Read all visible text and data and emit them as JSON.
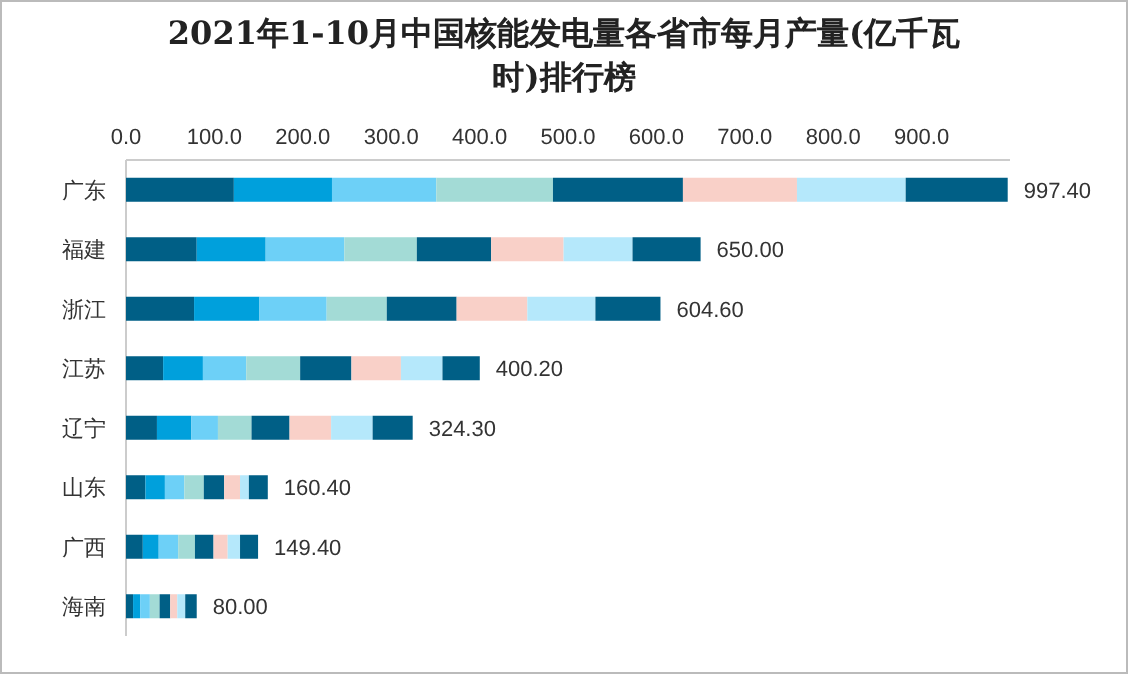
{
  "chart_data": {
    "type": "bar",
    "title": "2021年1-10月中国核能发电量各省市每月产量(亿千瓦时)排行榜",
    "orientation": "horizontal",
    "stacked": true,
    "categories": [
      "广东",
      "福建",
      "浙江",
      "江苏",
      "辽宁",
      "山东",
      "广西",
      "海南"
    ],
    "xlim": [
      0,
      1000
    ],
    "xticks": [
      {
        "value": 0,
        "label": "0.0"
      },
      {
        "value": 100,
        "label": "100.0"
      },
      {
        "value": 200,
        "label": "200.0"
      },
      {
        "value": 300,
        "label": "300.0"
      },
      {
        "value": 400,
        "label": "400.0"
      },
      {
        "value": 500,
        "label": "500.0"
      },
      {
        "value": 600,
        "label": "600.0"
      },
      {
        "value": 700,
        "label": "700.0"
      },
      {
        "value": 800,
        "label": "800.0"
      },
      {
        "value": 900,
        "label": "900.0"
      }
    ],
    "series": [
      {
        "color": "#005f86",
        "values": [
          122,
          80,
          77,
          42,
          35,
          22,
          19,
          8
        ]
      },
      {
        "color": "#00a0dc",
        "values": [
          111,
          78,
          74,
          45,
          39,
          22,
          18,
          8
        ]
      },
      {
        "color": "#6dd0f7",
        "values": [
          118,
          89,
          76,
          49,
          30,
          22,
          22,
          11
        ]
      },
      {
        "color": "#a3dbd6",
        "values": [
          132,
          82,
          68,
          61,
          38,
          22,
          19,
          11
        ]
      },
      {
        "color": "#005f86",
        "values": [
          147,
          84,
          79,
          58,
          43,
          23,
          21,
          12
        ]
      },
      {
        "color": "#f9d0c8",
        "values": [
          129,
          82,
          80,
          56,
          47,
          18,
          16,
          8
        ]
      },
      {
        "color": "#b5e8fb",
        "values": [
          123,
          78,
          77,
          47,
          47,
          10,
          14,
          9
        ]
      },
      {
        "color": "#005f86",
        "values": [
          115.4,
          77,
          73.6,
          42.2,
          45.3,
          21.4,
          20.4,
          13
        ]
      }
    ],
    "totals": [
      "997.40",
      "650.00",
      "604.60",
      "400.20",
      "324.30",
      "160.40",
      "149.40",
      "80.00"
    ]
  }
}
